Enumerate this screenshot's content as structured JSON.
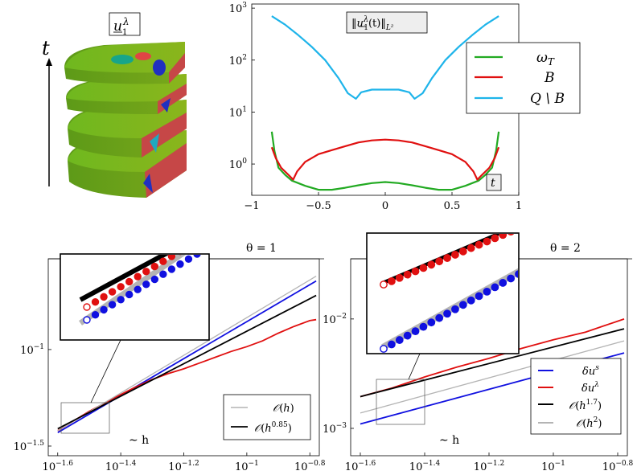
{
  "colors": {
    "green": "#22aa22",
    "red": "#e01010",
    "cyan": "#1eb4ea",
    "blue": "#1010e0",
    "black": "#000000",
    "gray": "#b4b4b4"
  },
  "cyl": {
    "label_math": "u",
    "label_sup": "λ",
    "label_sub": "1",
    "time_axis_label": "t"
  },
  "chart_data": [
    {
      "id": "top",
      "type": "line",
      "title": "‖u_1^λ(t)‖_{L²}",
      "title_parts": {
        "norm_open": "‖",
        "u": "u",
        "sub": "1",
        "sup": "λ",
        "arg": "(t)",
        "norm_close": "‖",
        "space": "L²"
      },
      "xlabel": "t",
      "yscale": "log",
      "xlim": [
        -1,
        1
      ],
      "ylim": [
        0.25,
        1200
      ],
      "xticks": [
        -1,
        -0.5,
        0,
        0.5,
        1
      ],
      "xtick_labels": [
        "−1",
        "−0.5",
        "0",
        "0.5",
        "1"
      ],
      "yticks": [
        1,
        10,
        100,
        1000
      ],
      "ytick_labels": [
        [
          "10",
          "0"
        ],
        [
          "10",
          "1"
        ],
        [
          "10",
          "2"
        ],
        [
          "10",
          "3"
        ]
      ],
      "legend": [
        {
          "name": "ω",
          "sub": "T",
          "color": "#22aa22"
        },
        {
          "name": "B",
          "sub": "",
          "color": "#e01010"
        },
        {
          "name": "Q \\ B",
          "sub": "",
          "color": "#1eb4ea"
        }
      ],
      "series": [
        {
          "name": "ω_T",
          "color": "#22aa22",
          "x": [
            -0.85,
            -0.83,
            -0.8,
            -0.75,
            -0.7,
            -0.6,
            -0.5,
            -0.4,
            -0.3,
            -0.2,
            -0.1,
            0,
            0.1,
            0.2,
            0.3,
            0.4,
            0.5,
            0.6,
            0.7,
            0.75,
            0.8,
            0.83,
            0.85
          ],
          "y": [
            4.2,
            1.8,
            0.85,
            0.62,
            0.48,
            0.38,
            0.32,
            0.32,
            0.35,
            0.39,
            0.43,
            0.45,
            0.43,
            0.39,
            0.35,
            0.32,
            0.32,
            0.38,
            0.48,
            0.62,
            0.85,
            1.8,
            4.2
          ]
        },
        {
          "name": "B",
          "color": "#e01010",
          "x": [
            -0.85,
            -0.82,
            -0.78,
            -0.72,
            -0.69,
            -0.66,
            -0.6,
            -0.5,
            -0.4,
            -0.3,
            -0.2,
            -0.1,
            0,
            0.1,
            0.2,
            0.3,
            0.4,
            0.5,
            0.6,
            0.66,
            0.69,
            0.72,
            0.78,
            0.82,
            0.85
          ],
          "y": [
            2.1,
            1.3,
            0.85,
            0.6,
            0.5,
            0.72,
            1.1,
            1.55,
            1.85,
            2.2,
            2.6,
            2.85,
            2.95,
            2.85,
            2.6,
            2.2,
            1.85,
            1.55,
            1.1,
            0.72,
            0.5,
            0.6,
            0.85,
            1.3,
            2.1
          ]
        },
        {
          "name": "Q \\ B",
          "color": "#1eb4ea",
          "x": [
            -0.85,
            -0.75,
            -0.65,
            -0.55,
            -0.45,
            -0.35,
            -0.28,
            -0.22,
            -0.18,
            -0.1,
            0,
            0.1,
            0.18,
            0.22,
            0.28,
            0.35,
            0.45,
            0.55,
            0.65,
            0.75,
            0.85
          ],
          "y": [
            700,
            480,
            300,
            180,
            100,
            45,
            23,
            18,
            24,
            27,
            27,
            27,
            24,
            18,
            23,
            45,
            100,
            180,
            300,
            480,
            700
          ]
        }
      ]
    },
    {
      "id": "bl",
      "type": "line",
      "title": "θ = 1",
      "xlabel": "∼ h",
      "xscale": "log",
      "yscale": "log",
      "xlim": [
        -1.63,
        -0.77
      ],
      "ylim": [
        -1.55,
        -0.53
      ],
      "xticks": [
        -1.6,
        -1.4,
        -1.2,
        -1,
        -0.8
      ],
      "xtick_labels": [
        [
          "10",
          "−1.6"
        ],
        [
          "10",
          "−1.4"
        ],
        [
          "10",
          "−1.2"
        ],
        [
          "10",
          "−1"
        ],
        [
          "10",
          "−0.8"
        ]
      ],
      "yticks": [
        -1,
        -1.5
      ],
      "ytick_labels": [
        [
          "10",
          "−1"
        ],
        [
          "10",
          "−1.5"
        ]
      ],
      "legend": [
        {
          "name": "O(h)",
          "inner": "h",
          "sup": "",
          "color": "#b4b4b4"
        },
        {
          "name": "O(h^0.85)",
          "inner": "h",
          "sup": "0.85",
          "color": "#000000"
        }
      ],
      "series": [
        {
          "name": "δu^s",
          "color": "#1010e0",
          "x": [
            -1.6,
            -0.78
          ],
          "y": [
            -1.43,
            -0.645
          ]
        },
        {
          "name": "δu^λ",
          "color": "#e01010",
          "x": [
            -1.6,
            -1.5,
            -1.42,
            -1.36,
            -1.3,
            -1.25,
            -1.2,
            -1.15,
            -1.1,
            -1.05,
            -1.0,
            -0.95,
            -0.9,
            -0.85,
            -0.8,
            -0.78
          ],
          "y": [
            -1.42,
            -1.32,
            -1.25,
            -1.2,
            -1.155,
            -1.125,
            -1.1,
            -1.07,
            -1.04,
            -1.01,
            -0.985,
            -0.955,
            -0.915,
            -0.88,
            -0.85,
            -0.845
          ]
        },
        {
          "name": "O(h)",
          "color": "#b4b4b4",
          "x": [
            -1.6,
            -0.78
          ],
          "y": [
            -1.42,
            -0.62
          ]
        },
        {
          "name": "O(h^0.85)",
          "color": "#000000",
          "x": [
            -1.6,
            -0.78
          ],
          "y": [
            -1.41,
            -0.72
          ]
        }
      ]
    },
    {
      "id": "br",
      "type": "line",
      "title": "θ = 2",
      "xlabel": "∼ h",
      "xscale": "log",
      "yscale": "log",
      "xlim": [
        -1.63,
        -0.77
      ],
      "ylim": [
        -3.25,
        -1.45
      ],
      "xticks": [
        -1.6,
        -1.4,
        -1.2,
        -1,
        -0.8
      ],
      "xtick_labels": [
        [
          "10",
          "−1.6"
        ],
        [
          "10",
          "−1.4"
        ],
        [
          "10",
          "−1.2"
        ],
        [
          "10",
          "−1"
        ],
        [
          "10",
          "−0.8"
        ]
      ],
      "yticks": [
        -2,
        -3
      ],
      "ytick_labels": [
        [
          "10",
          "−2"
        ],
        [
          "10",
          "−3"
        ]
      ],
      "legend": [
        {
          "name": "δu",
          "sup": "s",
          "color": "#1010e0"
        },
        {
          "name": "δu",
          "sup": "λ",
          "color": "#e01010"
        },
        {
          "name": "O(h^1.7)",
          "inner": "h",
          "sup": "1.7",
          "color": "#000000"
        },
        {
          "name": "O(h^2)",
          "inner": "h",
          "sup": "2",
          "color": "#b4b4b4"
        }
      ],
      "series": [
        {
          "name": "δu^s",
          "color": "#1010e0",
          "x": [
            -1.6,
            -0.78
          ],
          "y": [
            -2.96,
            -2.31
          ]
        },
        {
          "name": "δu^λ",
          "color": "#e01010",
          "x": [
            -1.6,
            -1.5,
            -1.4,
            -1.3,
            -1.2,
            -1.1,
            -1.0,
            -0.9,
            -0.85,
            -0.8,
            -0.78
          ],
          "y": [
            -2.71,
            -2.63,
            -2.53,
            -2.44,
            -2.36,
            -2.27,
            -2.19,
            -2.12,
            -2.07,
            -2.02,
            -2.0
          ]
        },
        {
          "name": "O(h^1.7)",
          "color": "#000000",
          "x": [
            -1.6,
            -0.78
          ],
          "y": [
            -2.71,
            -2.09
          ]
        },
        {
          "name": "O(h^2)",
          "color": "#b4b4b4",
          "x": [
            -1.6,
            -0.78
          ],
          "y": [
            -2.86,
            -2.2
          ]
        }
      ]
    }
  ]
}
